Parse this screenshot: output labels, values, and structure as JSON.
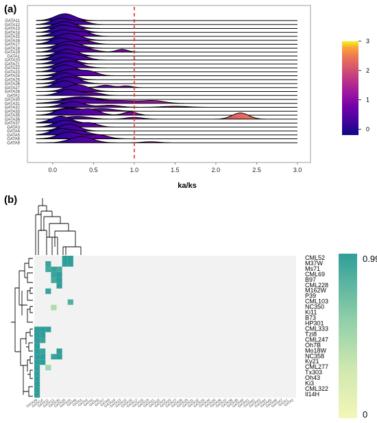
{
  "chart_data": [
    {
      "panel": "(a)",
      "type": "area",
      "subtype": "ridgeline",
      "xlabel": "ka/ks",
      "xlim": [
        -0.3,
        3.05
      ],
      "xticks": [
        "0.0",
        "0.5",
        "1.0",
        "1.5",
        "2.0",
        "2.5",
        "3.0"
      ],
      "reference_line": {
        "x": 1.0,
        "color": "#e8291c",
        "style": "dashed"
      },
      "colorbar": {
        "ticks": [
          "0",
          "1",
          "2",
          "3"
        ],
        "range": [
          -0.2,
          3.0
        ],
        "palette": "plasma"
      },
      "series": [
        {
          "name": "GATA11",
          "peaks": [
            [
              0.15,
              1.0,
              0.12
            ]
          ]
        },
        {
          "name": "GATA12",
          "peaks": [
            [
              0.1,
              0.9,
              0.11
            ],
            [
              0.35,
              0.5,
              0.09
            ]
          ]
        },
        {
          "name": "GATA13",
          "peaks": [
            [
              0.15,
              1.0,
              0.13
            ]
          ]
        },
        {
          "name": "GATA14",
          "peaks": [
            [
              0.1,
              1.0,
              0.1
            ],
            [
              0.3,
              0.6,
              0.1
            ]
          ]
        },
        {
          "name": "GATA15",
          "peaks": [
            [
              0.12,
              0.9,
              0.12
            ],
            [
              0.38,
              0.6,
              0.1
            ]
          ]
        },
        {
          "name": "GATA16",
          "peaks": [
            [
              0.2,
              1.0,
              0.14
            ]
          ]
        },
        {
          "name": "GATA17",
          "peaks": [
            [
              0.1,
              0.9,
              0.12
            ],
            [
              0.4,
              0.5,
              0.1
            ]
          ]
        },
        {
          "name": "GATA18",
          "peaks": [
            [
              0.2,
              1.0,
              0.13
            ]
          ]
        },
        {
          "name": "GATA19",
          "peaks": [
            [
              0.15,
              1.0,
              0.12
            ],
            [
              0.4,
              0.5,
              0.12
            ],
            [
              0.85,
              0.4,
              0.07
            ]
          ]
        },
        {
          "name": "GATA1",
          "peaks": [
            [
              0.18,
              1.0,
              0.12
            ]
          ]
        },
        {
          "name": "GATA20",
          "peaks": [
            [
              0.12,
              1.0,
              0.12
            ],
            [
              0.35,
              0.5,
              0.1
            ]
          ]
        },
        {
          "name": "GATA21",
          "peaks": [
            [
              0.15,
              1.0,
              0.12
            ]
          ]
        },
        {
          "name": "GATA22",
          "peaks": [
            [
              0.2,
              1.0,
              0.14
            ]
          ]
        },
        {
          "name": "GATA23",
          "peaks": [
            [
              0.15,
              1.0,
              0.12
            ]
          ]
        },
        {
          "name": "GATA24",
          "peaks": [
            [
              0.2,
              0.9,
              0.13
            ],
            [
              0.45,
              0.6,
              0.1
            ]
          ]
        },
        {
          "name": "GATA25",
          "peaks": [
            [
              0.15,
              1.0,
              0.12
            ]
          ]
        },
        {
          "name": "GATA26",
          "peaks": [
            [
              0.2,
              1.0,
              0.13
            ]
          ]
        },
        {
          "name": "GATA27",
          "peaks": [
            [
              0.15,
              1.0,
              0.12
            ],
            [
              0.65,
              0.35,
              0.08
            ],
            [
              0.9,
              0.25,
              0.07
            ]
          ]
        },
        {
          "name": "GATA28",
          "peaks": [
            [
              0.3,
              1.0,
              0.14
            ]
          ]
        },
        {
          "name": "GATA2",
          "peaks": [
            [
              0.2,
              0.9,
              0.12
            ],
            [
              0.5,
              0.4,
              0.1
            ]
          ]
        },
        {
          "name": "GATA30",
          "peaks": [
            [
              0.35,
              0.4,
              0.15
            ]
          ]
        },
        {
          "name": "GATA31",
          "peaks": [
            [
              0.3,
              0.7,
              0.2
            ],
            [
              0.85,
              0.4,
              0.25
            ],
            [
              1.25,
              0.3,
              0.12
            ]
          ]
        },
        {
          "name": "GATA32",
          "peaks": [
            [
              0.25,
              0.8,
              0.14
            ],
            [
              0.7,
              0.3,
              0.12
            ],
            [
              1.5,
              0.15,
              0.15
            ]
          ]
        },
        {
          "name": "GATA33",
          "peaks": [
            [
              0.2,
              0.5,
              0.12
            ],
            [
              0.6,
              0.4,
              0.15
            ]
          ]
        },
        {
          "name": "GATA35",
          "peaks": [
            [
              0.15,
              0.9,
              0.12
            ],
            [
              0.45,
              0.9,
              0.12
            ],
            [
              0.95,
              0.5,
              0.08
            ]
          ]
        },
        {
          "name": "GATA36",
          "peaks": [
            [
              0.3,
              0.4,
              0.15
            ],
            [
              1.0,
              0.25,
              0.1
            ],
            [
              2.3,
              0.9,
              0.1
            ]
          ]
        },
        {
          "name": "GATA37",
          "peaks": [
            [
              0.1,
              1.0,
              0.12
            ]
          ]
        },
        {
          "name": "GATA3",
          "peaks": [
            [
              0.15,
              1.0,
              0.12
            ],
            [
              0.45,
              0.6,
              0.1
            ]
          ]
        },
        {
          "name": "GATA4",
          "peaks": [
            [
              0.2,
              1.0,
              0.12
            ]
          ]
        },
        {
          "name": "GATA5",
          "peaks": [
            [
              0.1,
              0.9,
              0.12
            ],
            [
              0.35,
              0.5,
              0.1
            ]
          ]
        },
        {
          "name": "GATA6",
          "peaks": [
            [
              0.2,
              1.0,
              0.13
            ],
            [
              0.55,
              0.6,
              0.12
            ]
          ]
        },
        {
          "name": "GATA9",
          "peaks": [
            [
              0.35,
              0.9,
              0.14
            ],
            [
              1.2,
              0.15,
              0.1
            ]
          ]
        }
      ]
    },
    {
      "panel": "(b)",
      "type": "heatmap",
      "rows": [
        "CML52",
        "M37W",
        "Ms71",
        "CML69",
        "B97",
        "CML228",
        "M162W",
        "P39",
        "CML103",
        "NC350",
        "Ki11",
        "B73",
        "HP301",
        "CML333",
        "Tzi8",
        "CML247",
        "Oh7B",
        "Mo18W",
        "NC358",
        "Ky21",
        "CML277",
        "Tx303",
        "Oh43",
        "Ki3",
        "CML322",
        "Il14H"
      ],
      "columns": [
        "GATA26",
        "GATA14",
        "GATA11",
        "GATA12",
        "GATA30",
        "GATA20",
        "GATA24",
        "GATA8",
        "GATA3",
        "GATA4",
        "GATA5",
        "GATA6",
        "GATA7",
        "GATA9",
        "GATA10",
        "GATA13",
        "GATA15",
        "GATA16",
        "GATA17",
        "GATA18",
        "GATA19",
        "GATA21",
        "GATA22",
        "GATA23",
        "GATA25",
        "GATA27",
        "GATA28",
        "GATA29",
        "GATA31",
        "GATA32",
        "GATA33",
        "GATA34",
        "GATA35",
        "GATA36",
        "GATA37",
        "GATA38",
        "GATA39",
        "GATA40",
        "GATA41",
        "GATA42",
        "GATA43",
        "GATA44",
        "GATA45",
        "GATA46",
        "GATA47",
        "GATA1",
        "GATA2"
      ],
      "colorbar": {
        "min_label": "0",
        "max_label": "0.99",
        "min": 0,
        "max": 0.99
      },
      "cells": [
        [
          0,
          5,
          0.99
        ],
        [
          0,
          6,
          0.99
        ],
        [
          1,
          2,
          0.95
        ],
        [
          1,
          5,
          0.99
        ],
        [
          1,
          6,
          0.99
        ],
        [
          2,
          2,
          0.9
        ],
        [
          2,
          3,
          0.95
        ],
        [
          2,
          4,
          0.9
        ],
        [
          3,
          3,
          0.95
        ],
        [
          3,
          4,
          0.99
        ],
        [
          4,
          3,
          0.9
        ],
        [
          4,
          4,
          0.99
        ],
        [
          5,
          4,
          0.99
        ],
        [
          6,
          2,
          0.95
        ],
        [
          8,
          6,
          0.85
        ],
        [
          9,
          3,
          0.45
        ],
        [
          13,
          0,
          0.99
        ],
        [
          13,
          1,
          0.99
        ],
        [
          13,
          2,
          0.99
        ],
        [
          14,
          0,
          0.99
        ],
        [
          14,
          1,
          0.99
        ],
        [
          15,
          0,
          0.99
        ],
        [
          15,
          1,
          0.95
        ],
        [
          16,
          0,
          0.99
        ],
        [
          17,
          0,
          0.99
        ],
        [
          17,
          1,
          0.95
        ],
        [
          17,
          4,
          0.99
        ],
        [
          18,
          0,
          0.99
        ],
        [
          18,
          1,
          0.99
        ],
        [
          18,
          3,
          0.95
        ],
        [
          18,
          4,
          0.99
        ],
        [
          19,
          0,
          0.99
        ],
        [
          19,
          1,
          0.99
        ],
        [
          20,
          0,
          0.99
        ],
        [
          20,
          2,
          0.5
        ],
        [
          21,
          0,
          0.99
        ],
        [
          22,
          0,
          0.99
        ],
        [
          23,
          0,
          0.99
        ],
        [
          24,
          0,
          0.99
        ],
        [
          25,
          0,
          0.99
        ]
      ]
    }
  ]
}
